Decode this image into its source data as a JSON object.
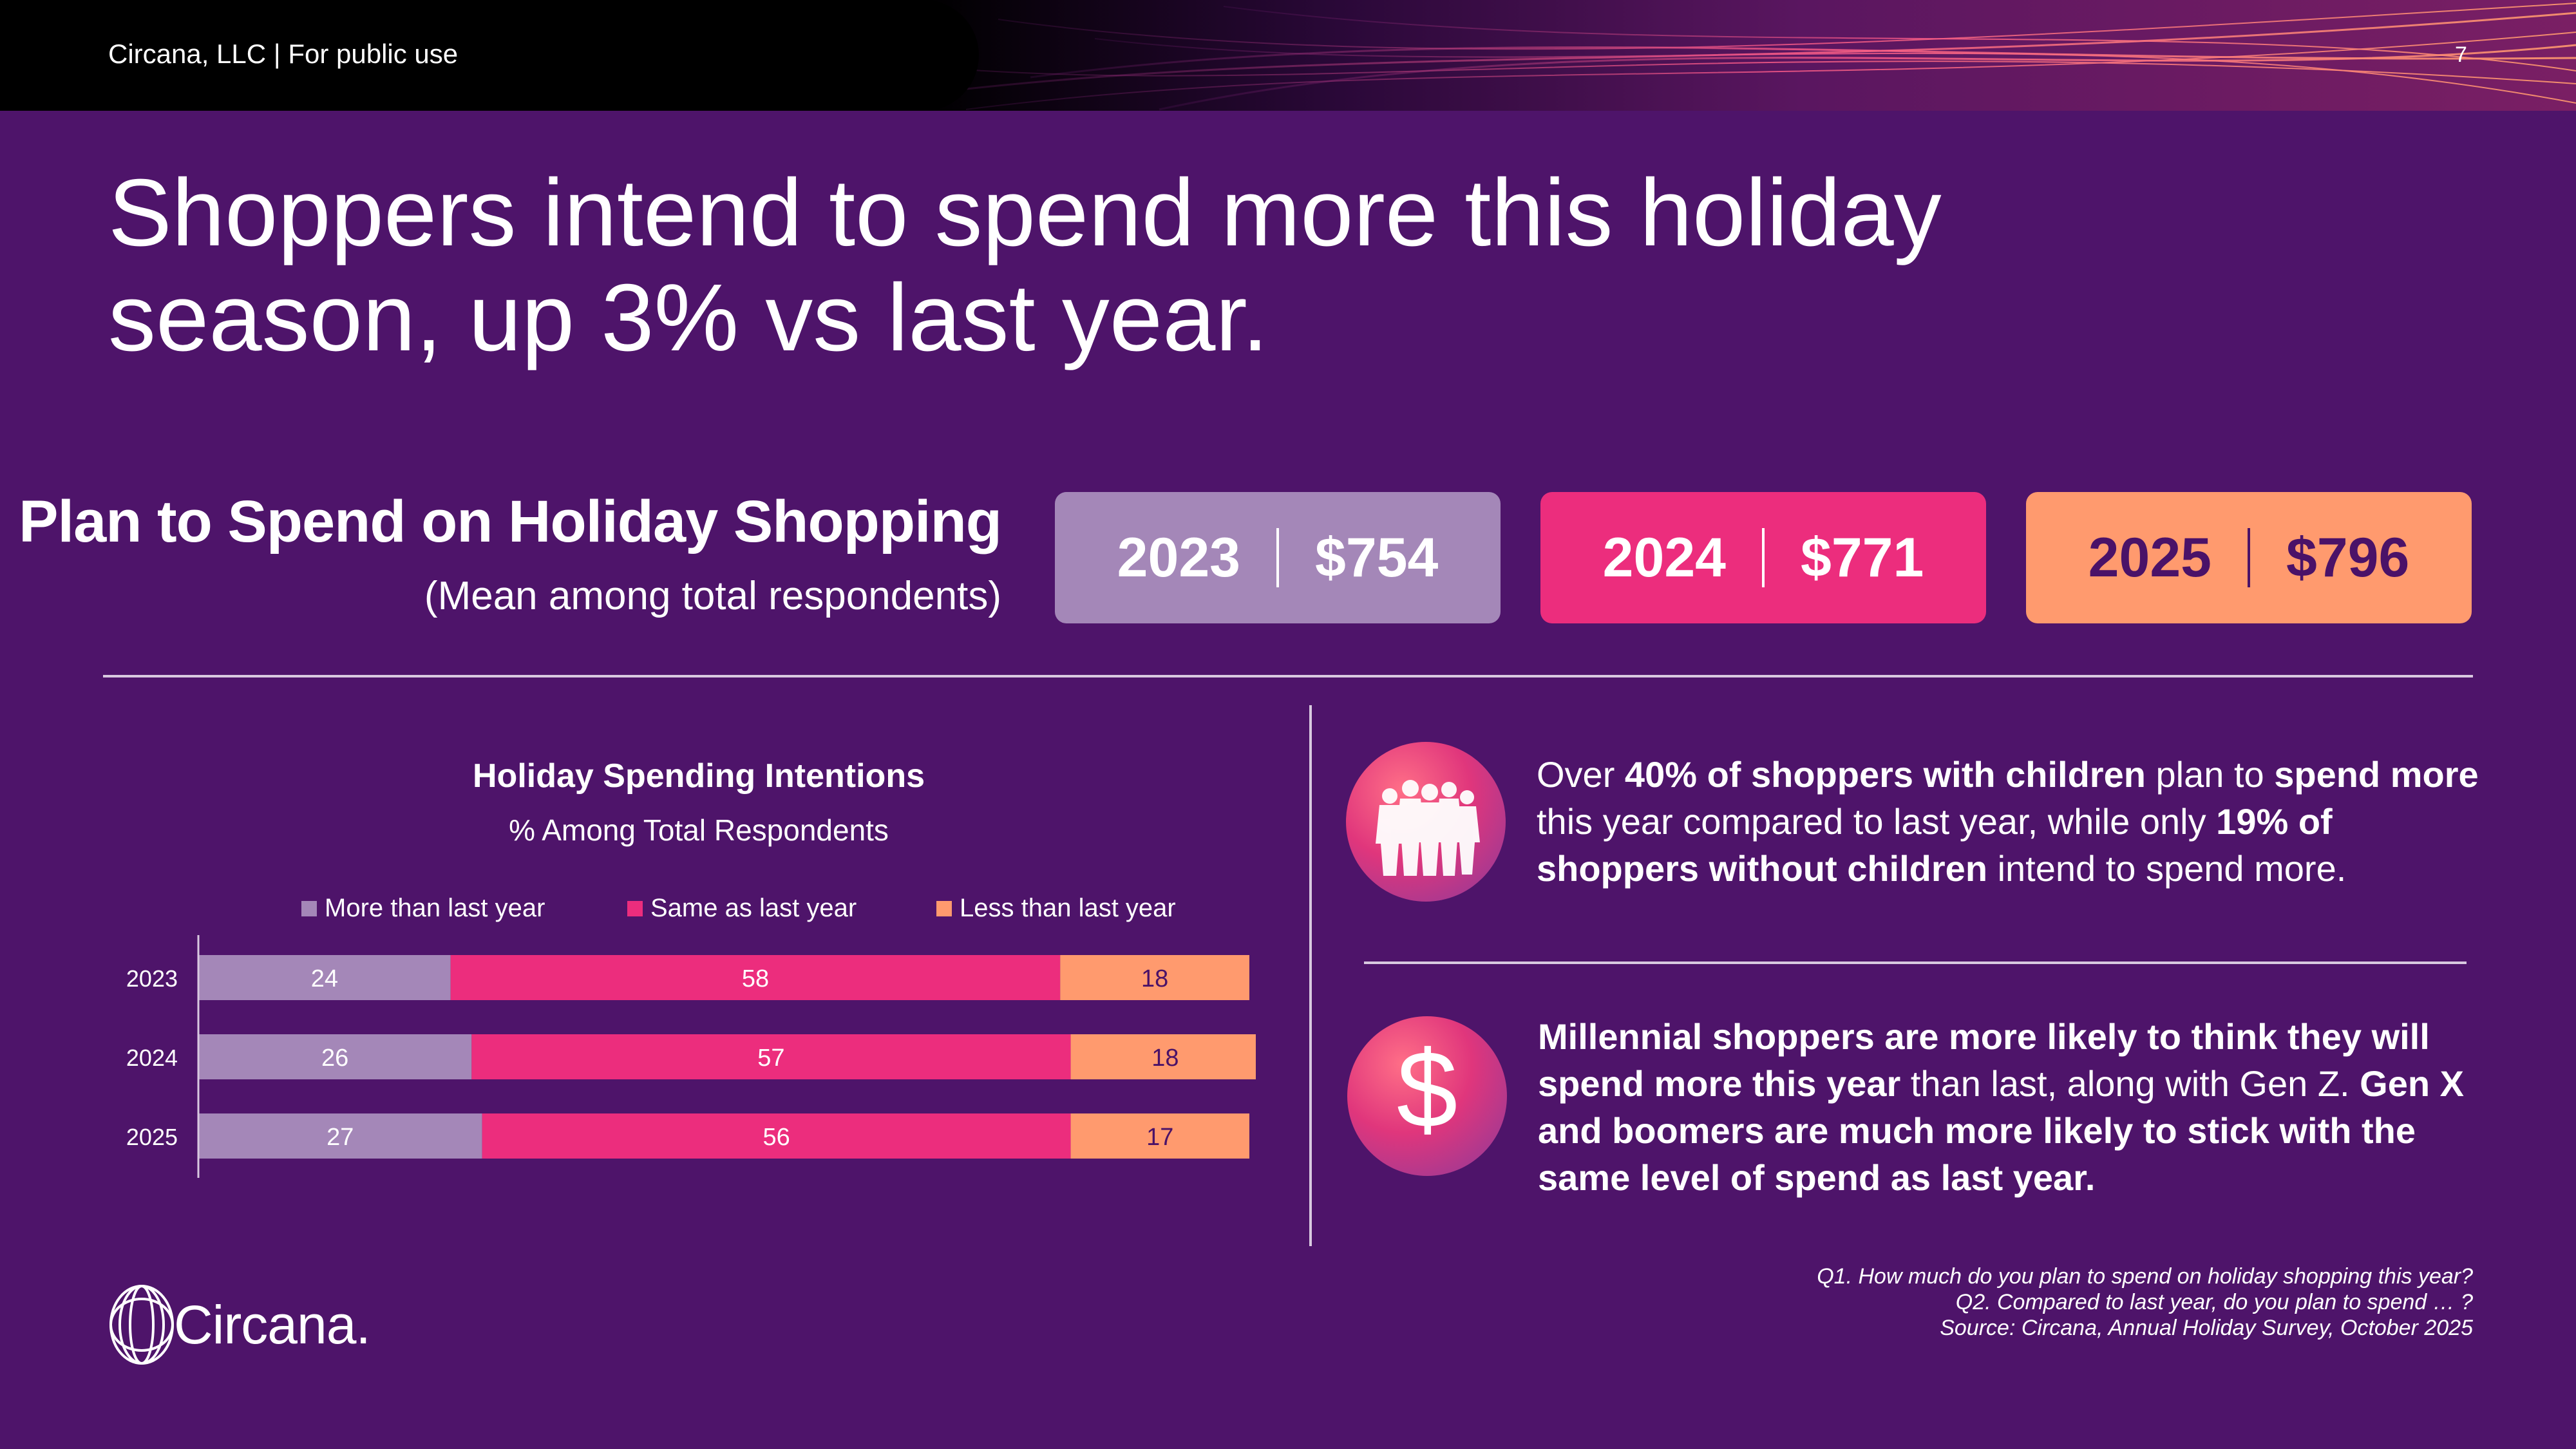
{
  "header": {
    "left_text": "Circana, LLC |  For public use",
    "page_number": "7"
  },
  "title": "Shoppers intend to spend more this holiday season, up 3% vs last year.",
  "plan": {
    "title": "Plan to Spend on Holiday Shopping",
    "subtitle": "(Mean among total respondents)",
    "pills": [
      {
        "year": "2023",
        "amount": "$754"
      },
      {
        "year": "2024",
        "amount": "$771"
      },
      {
        "year": "2025",
        "amount": "$796"
      }
    ]
  },
  "chart_data": {
    "type": "bar",
    "orientation": "horizontal",
    "stacked": true,
    "title": "Holiday Spending Intentions",
    "subtitle": "% Among Total Respondents",
    "categories": [
      "2023",
      "2024",
      "2025"
    ],
    "series": [
      {
        "name": "More than last year",
        "values": [
          24,
          26,
          27
        ],
        "color": "#a487b8",
        "label_color": "#ffffff"
      },
      {
        "name": "Same as last year",
        "values": [
          58,
          57,
          56
        ],
        "color": "#ec2d7d",
        "label_color": "#ffffff"
      },
      {
        "name": "Less than last year",
        "values": [
          18,
          18,
          17
        ],
        "color": "#ff9a6e",
        "label_color": "#4a1268"
      }
    ],
    "xlim": [
      0,
      100
    ],
    "legend": "top"
  },
  "insights": {
    "one": {
      "t1": "Over ",
      "b1": "40% of shoppers with children",
      "t2": " plan to ",
      "b2": "spend more",
      "t3": " this year compared to last year, while only ",
      "b3": "19% of shoppers without children",
      "t4": " intend to spend more."
    },
    "two": {
      "b1": "Millennial shoppers are more likely to think they will spend more this year",
      "t1": " than last, along with Gen Z. ",
      "b2": "Gen X and boomers are much more likely to stick with the same level of spend as last year."
    }
  },
  "footnotes": {
    "q1": "Q1. How much do you plan to spend on holiday shopping this year?",
    "q2": "Q2. Compared to last year, do you plan to spend … ?",
    "source": "Source: Circana, Annual Holiday Survey, October 2025"
  },
  "logo_text": "Circana.",
  "icons": {
    "people": "people-group-icon",
    "dollar": "dollar-sign-icon"
  },
  "colors": {
    "background": "#4e146a",
    "more": "#a487b8",
    "same": "#ec2d7d",
    "less": "#ff9a6e"
  }
}
